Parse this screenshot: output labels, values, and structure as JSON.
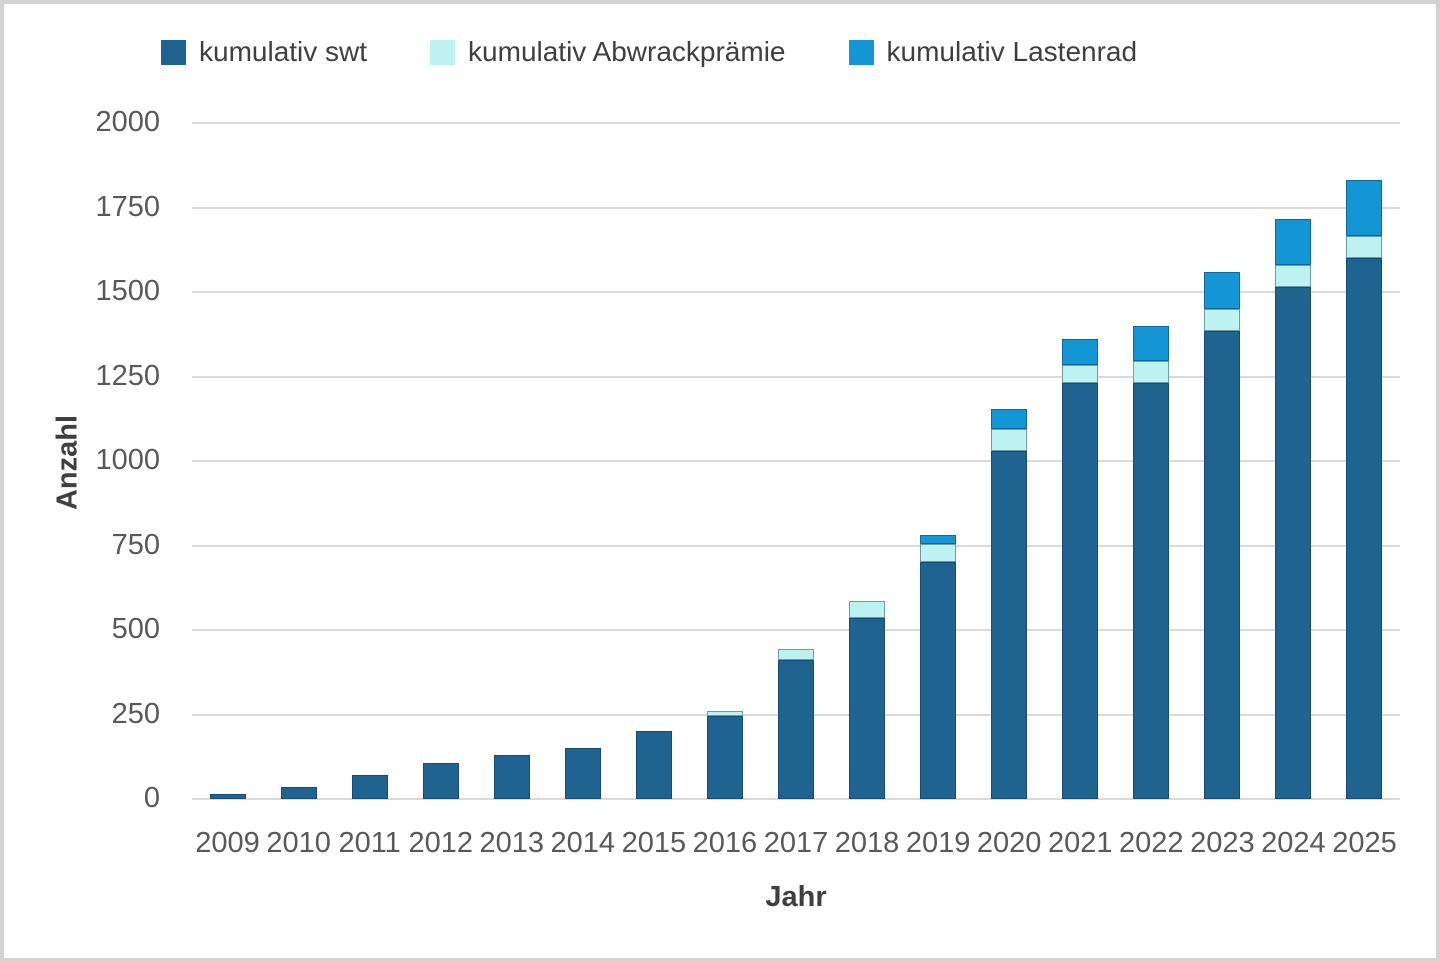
{
  "chart_data": {
    "type": "bar",
    "variant": "stacked",
    "title": "",
    "xlabel": "Jahr",
    "ylabel": "Anzahl",
    "ylim": [
      0,
      2000
    ],
    "ytick_step": 250,
    "grid": "horizontal",
    "legend_position": "top",
    "categories": [
      "2009",
      "2010",
      "2011",
      "2012",
      "2013",
      "2014",
      "2015",
      "2016",
      "2017",
      "2018",
      "2019",
      "2020",
      "2021",
      "2022",
      "2023",
      "2024",
      "2025"
    ],
    "series": [
      {
        "name": "kumulativ swt",
        "color": "#1F6391",
        "values": [
          15,
          35,
          72,
          107,
          130,
          150,
          200,
          245,
          410,
          535,
          700,
          1030,
          1230,
          1230,
          1385,
          1515,
          1600
        ]
      },
      {
        "name": "kumulativ Abwrackprämie",
        "color": "#BDF2F1",
        "values": [
          0,
          0,
          0,
          0,
          0,
          0,
          0,
          15,
          35,
          50,
          55,
          65,
          55,
          65,
          65,
          65,
          65
        ]
      },
      {
        "name": "kumulativ Lastenrad",
        "color": "#1495D6",
        "values": [
          0,
          0,
          0,
          0,
          0,
          0,
          0,
          0,
          0,
          0,
          25,
          60,
          75,
          105,
          110,
          135,
          165
        ]
      }
    ]
  },
  "colors": {
    "gridline": "#d9d9d9",
    "tick_text": "#595959",
    "axis_title_text": "#3f3f3f",
    "frame_border": "#d2d2d2",
    "background": "#ffffff"
  }
}
